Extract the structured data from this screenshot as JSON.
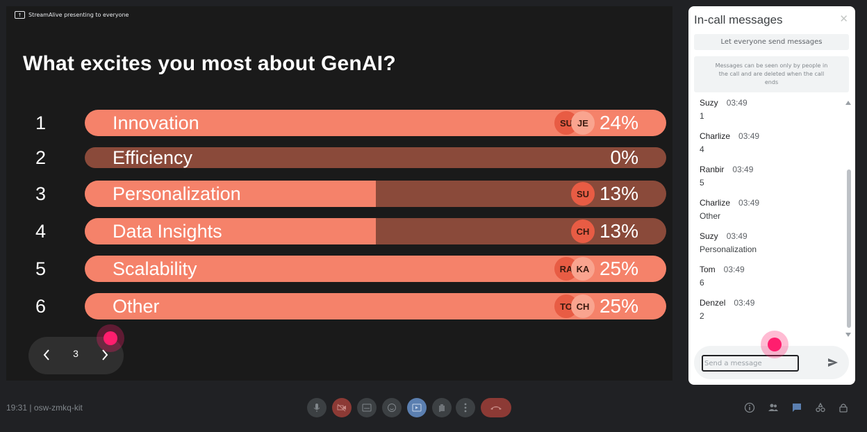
{
  "presenter": {
    "label": "StreamAlive presenting to everyone"
  },
  "poll": {
    "question": "What excites you most about GenAI?",
    "options": [
      {
        "number": "1",
        "label": "Innovation",
        "percent": "24%",
        "fill": 1.0,
        "avatars": [
          "SU",
          "JE"
        ]
      },
      {
        "number": "2",
        "label": "Efficiency",
        "percent": "0%",
        "fill": 0.0,
        "avatars": []
      },
      {
        "number": "3",
        "label": "Personalization",
        "percent": "13%",
        "fill": 0.5,
        "avatars": [
          "SU"
        ]
      },
      {
        "number": "4",
        "label": "Data Insights",
        "percent": "13%",
        "fill": 0.5,
        "avatars": [
          "CH"
        ]
      },
      {
        "number": "5",
        "label": "Scalability",
        "percent": "25%",
        "fill": 1.0,
        "avatars": [
          "RA",
          "KA"
        ]
      },
      {
        "number": "6",
        "label": "Other",
        "percent": "25%",
        "fill": 1.0,
        "avatars": [
          "TO",
          "CH"
        ]
      }
    ],
    "colors": {
      "bar": "#f5826a",
      "bar_dim": "#8a4a3a"
    }
  },
  "pager": {
    "page": "3"
  },
  "chat": {
    "title": "In-call messages",
    "toggle_label": "Let everyone send messages",
    "info": "Messages can be seen only by people in the call and are deleted when the call ends",
    "messages": [
      {
        "sender": "Suzy",
        "time": "03:49",
        "text": "1"
      },
      {
        "sender": "Charlize",
        "time": "03:49",
        "text": "4"
      },
      {
        "sender": "Ranbir",
        "time": "03:49",
        "text": "5"
      },
      {
        "sender": "Charlize",
        "time": "03:49",
        "text": "Other"
      },
      {
        "sender": "Suzy",
        "time": "03:49",
        "text": "Personalization"
      },
      {
        "sender": "Tom",
        "time": "03:49",
        "text": "6"
      },
      {
        "sender": "Denzel",
        "time": "03:49",
        "text": "2"
      }
    ],
    "input_placeholder": "Send a message"
  },
  "meeting": {
    "info": "19:31 | osw-zmkq-kit"
  },
  "icons": {
    "controls": [
      "mic-icon",
      "camera-off-icon",
      "captions-icon",
      "emoji-icon",
      "present-icon",
      "raise-hand-icon",
      "more-icon",
      "leave-call-icon"
    ],
    "right": [
      "info-icon",
      "people-icon",
      "chat-icon",
      "activities-icon",
      "host-controls-icon"
    ]
  }
}
